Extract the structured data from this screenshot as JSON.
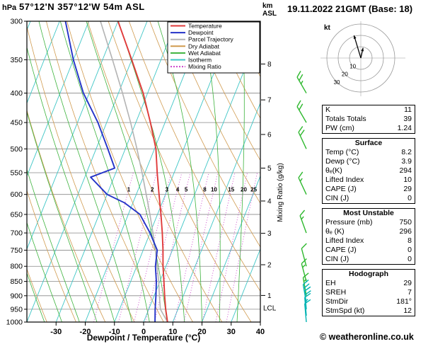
{
  "header": {
    "pressure_unit": "hPa",
    "station_title": "57°12'N 357°12'W 54m ASL",
    "datetime": "19.11.2022 21GMT (Base: 18)",
    "altitude_unit_line1": "km",
    "altitude_unit_line2": "ASL"
  },
  "legend": {
    "items": [
      {
        "label": "Temperature",
        "color": "#e03a3a",
        "dashed": false
      },
      {
        "label": "Dewpoint",
        "color": "#2433c8",
        "dashed": false
      },
      {
        "label": "Parcel Trajectory",
        "color": "#b3b3b3",
        "dashed": false
      },
      {
        "label": "Dry Adiabat",
        "color": "#d09a4e",
        "dashed": false
      },
      {
        "label": "Wet Adiabat",
        "color": "#3db33d",
        "dashed": false
      },
      {
        "label": "Isotherm",
        "color": "#3fc6c6",
        "dashed": false
      },
      {
        "label": "Mixing Ratio",
        "color": "#cc44cc",
        "dashed": true
      }
    ]
  },
  "axes": {
    "pressure_ticks": [
      300,
      350,
      400,
      450,
      500,
      550,
      600,
      650,
      700,
      750,
      800,
      850,
      900,
      950,
      1000
    ],
    "temp_ticks": [
      -30,
      -20,
      -10,
      0,
      10,
      20,
      30,
      40
    ],
    "xlabel": "Dewpoint / Temperature (°C)",
    "right_axis_label": "Mixing Ratio (g/kg)",
    "mixing_ratio_lines": [
      1,
      2,
      3,
      4,
      5,
      8,
      10,
      15,
      20,
      25
    ],
    "km_ticks": [
      [
        1,
        899
      ],
      [
        2,
        795
      ],
      [
        3,
        701
      ],
      [
        4,
        616
      ],
      [
        5,
        540
      ],
      [
        6,
        472
      ],
      [
        7,
        411
      ],
      [
        8,
        356
      ]
    ],
    "lcl": {
      "label": "LCL",
      "pressure_hpa": 945
    }
  },
  "chart_data": {
    "type": "line",
    "variant": "skew-t log-p sounding",
    "pressure_range_hpa": [
      300,
      1000
    ],
    "temperature_profile": {
      "pressure_hpa": [
        1000,
        950,
        900,
        850,
        800,
        750,
        700,
        650,
        600,
        550,
        500,
        450,
        400,
        350,
        300
      ],
      "temp_c": [
        8.2,
        5.8,
        3.6,
        1.4,
        -1.0,
        -3.2,
        -5.8,
        -8.8,
        -12.2,
        -15.8,
        -19.5,
        -25.0,
        -31.5,
        -40.0,
        -50.0
      ]
    },
    "dewpoint_profile": {
      "pressure_hpa": [
        1000,
        950,
        900,
        850,
        800,
        750,
        700,
        650,
        620,
        600,
        560,
        540,
        500,
        450,
        400,
        350,
        300
      ],
      "temp_c": [
        3.9,
        2.2,
        0.6,
        -1.2,
        -3.6,
        -5.2,
        -10.0,
        -16.0,
        -23.0,
        -30.0,
        -38.0,
        -31.0,
        -36.0,
        -43.0,
        -52.0,
        -60.0,
        -68.0
      ]
    },
    "parcel_profile": {
      "pressure_hpa": [
        1000,
        950,
        900,
        850,
        800,
        750,
        700,
        650,
        600,
        550,
        500,
        450,
        400,
        350,
        300
      ],
      "temp_c": [
        8.2,
        4.0,
        1.8,
        -0.4,
        -3.0,
        -5.8,
        -9.0,
        -12.6,
        -16.6,
        -21.0,
        -26.0,
        -31.8,
        -38.6,
        -46.6,
        -56.0
      ]
    },
    "wind_barbs": [
      {
        "pressure_hpa": 400,
        "speed_kt": 25,
        "dir_deg": 330,
        "color": "green"
      },
      {
        "pressure_hpa": 450,
        "speed_kt": 20,
        "dir_deg": 330,
        "color": "green"
      },
      {
        "pressure_hpa": 500,
        "speed_kt": 20,
        "dir_deg": 335,
        "color": "green"
      },
      {
        "pressure_hpa": 600,
        "speed_kt": 15,
        "dir_deg": 335,
        "color": "green"
      },
      {
        "pressure_hpa": 700,
        "speed_kt": 15,
        "dir_deg": 340,
        "color": "green"
      },
      {
        "pressure_hpa": 800,
        "speed_kt": 10,
        "dir_deg": 345,
        "color": "green"
      },
      {
        "pressure_hpa": 850,
        "speed_kt": 15,
        "dir_deg": 345,
        "color": "green"
      },
      {
        "pressure_hpa": 900,
        "speed_kt": 15,
        "dir_deg": 350,
        "color": "green"
      },
      {
        "pressure_hpa": 925,
        "speed_kt": 20,
        "dir_deg": 350,
        "color": "cyan"
      },
      {
        "pressure_hpa": 950,
        "speed_kt": 20,
        "dir_deg": 355,
        "color": "cyan"
      },
      {
        "pressure_hpa": 975,
        "speed_kt": 15,
        "dir_deg": 355,
        "color": "cyan"
      },
      {
        "pressure_hpa": 1000,
        "speed_kt": 12,
        "dir_deg": 355,
        "color": "cyan"
      }
    ],
    "hodograph": {
      "unit_label": "kt",
      "ring_spacing_kt": 10,
      "ring_labels": [
        10,
        20,
        30
      ],
      "vectors_kt": [
        {
          "u": -6,
          "v": 20
        },
        {
          "u": 2,
          "v": 9
        }
      ]
    }
  },
  "stats": {
    "boxes": [
      {
        "title": null,
        "rows": [
          [
            "K",
            "11"
          ],
          [
            "Totals Totals",
            "39"
          ],
          [
            "PW (cm)",
            "1.24"
          ]
        ]
      },
      {
        "title": "Surface",
        "rows": [
          [
            "Temp (°C)",
            "8.2"
          ],
          [
            "Dewp (°C)",
            "3.9"
          ],
          [
            "θₑ(K)",
            "294"
          ],
          [
            "Lifted Index",
            "10"
          ],
          [
            "CAPE (J)",
            "29"
          ],
          [
            "CIN (J)",
            "0"
          ]
        ]
      },
      {
        "title": "Most Unstable",
        "rows": [
          [
            "Pressure (mb)",
            "750"
          ],
          [
            "θₑ (K)",
            "296"
          ],
          [
            "Lifted Index",
            "8"
          ],
          [
            "CAPE (J)",
            "0"
          ],
          [
            "CIN (J)",
            "0"
          ]
        ]
      },
      {
        "title": "Hodograph",
        "rows": [
          [
            "EH",
            "29"
          ],
          [
            "SREH",
            "7"
          ],
          [
            "StmDir",
            "181°"
          ],
          [
            "StmSpd (kt)",
            "12"
          ]
        ]
      }
    ]
  },
  "footer": {
    "copyright": "© weatheronline.co.uk"
  },
  "colors": {
    "isobar": "#888888",
    "axis": "#000000",
    "barb_green": "#2eb82e",
    "barb_cyan": "#00b3b3",
    "hodo_ring": "#999999",
    "hodo_cross": "#bbbbbb",
    "hodo_label": "#888888"
  }
}
